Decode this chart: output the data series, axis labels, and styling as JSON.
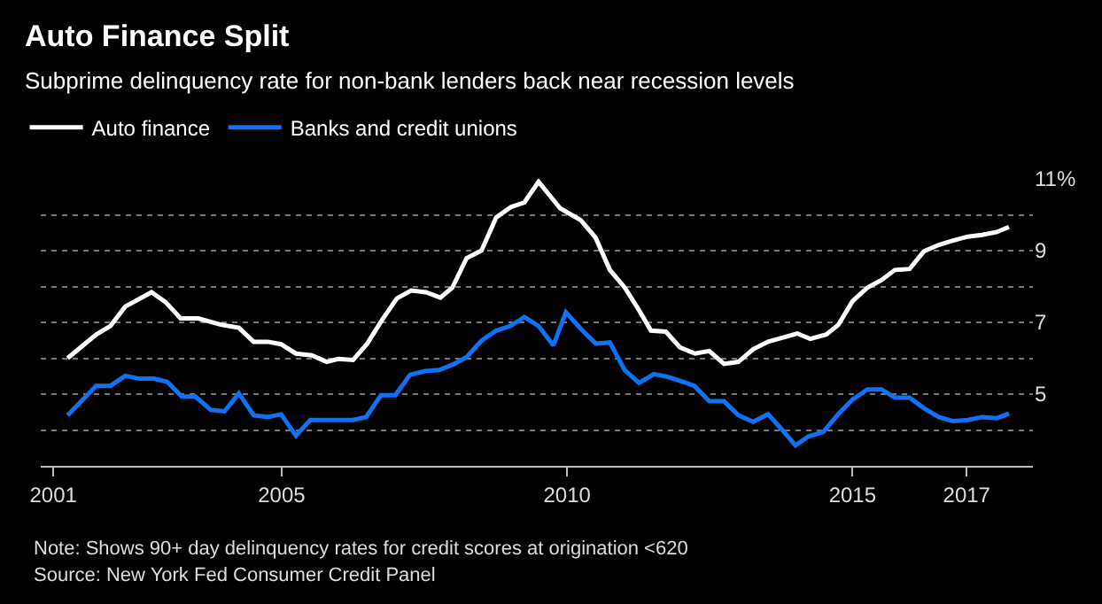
{
  "chart_data": {
    "type": "line",
    "title": "Auto Finance Split",
    "subtitle": "Subprime delinquency rate for non-bank lenders back near recession levels",
    "annotations": [
      "Note: Shows 90+ day delinquency rates for credit scores at origination <620",
      "Source: New York Fed Consumer Credit Panel"
    ],
    "series": [
      {
        "name": "Auto finance",
        "color": "#ffffff",
        "x": [
          2001.25,
          2001.75,
          2002.0,
          2002.26,
          2002.72,
          2002.97,
          2003.23,
          2003.54,
          2003.95,
          2004.25,
          2004.51,
          2004.76,
          2004.99,
          2005.25,
          2005.53,
          2005.79,
          2005.99,
          2006.25,
          2006.5,
          2006.76,
          2007.02,
          2007.27,
          2007.53,
          2007.78,
          2007.99,
          2008.24,
          2008.5,
          2008.76,
          2009.01,
          2009.25,
          2009.5,
          2009.88,
          2010.24,
          2010.5,
          2010.75,
          2011.01,
          2011.26,
          2011.47,
          2011.73,
          2011.98,
          2012.24,
          2012.49,
          2012.75,
          2013.0,
          2013.26,
          2013.52,
          2013.77,
          2014.03,
          2014.26,
          2014.54,
          2014.75,
          2015.0,
          2015.26,
          2015.51,
          2015.74,
          2016.0,
          2016.25,
          2016.51,
          2016.76,
          2017.02,
          2017.27,
          2017.53,
          2017.74
        ],
        "values": [
          6.0,
          6.66,
          6.9,
          7.44,
          7.84,
          7.56,
          7.11,
          7.11,
          6.93,
          6.85,
          6.46,
          6.46,
          6.39,
          6.13,
          6.08,
          5.9,
          5.98,
          5.95,
          6.41,
          7.07,
          7.67,
          7.89,
          7.84,
          7.69,
          7.97,
          8.79,
          9.0,
          9.93,
          10.21,
          10.34,
          10.92,
          10.18,
          9.85,
          9.36,
          8.46,
          7.97,
          7.34,
          6.77,
          6.74,
          6.3,
          6.13,
          6.2,
          5.84,
          5.9,
          6.25,
          6.46,
          6.57,
          6.69,
          6.54,
          6.66,
          6.93,
          7.59,
          7.97,
          8.18,
          8.46,
          8.49,
          8.98,
          9.16,
          9.28,
          9.39,
          9.44,
          9.52,
          9.66
        ]
      },
      {
        "name": "Banks and credit unions",
        "color": "#0f72f5",
        "x": [
          2001.25,
          2001.75,
          2002.0,
          2002.26,
          2002.51,
          2002.77,
          2003.0,
          2003.25,
          2003.49,
          2003.76,
          2004.0,
          2004.25,
          2004.51,
          2004.76,
          2004.99,
          2005.25,
          2005.5,
          2005.79,
          2006.25,
          2006.48,
          2006.74,
          2006.99,
          2007.25,
          2007.51,
          2007.76,
          2008.02,
          2008.24,
          2008.5,
          2008.76,
          2009.01,
          2009.25,
          2009.5,
          2009.76,
          2009.98,
          2010.24,
          2010.5,
          2010.75,
          2011.01,
          2011.26,
          2011.52,
          2011.77,
          2012.03,
          2012.23,
          2012.49,
          2012.75,
          2013.0,
          2013.26,
          2013.52,
          2013.77,
          2014.0,
          2014.23,
          2014.49,
          2014.75,
          2015.0,
          2015.26,
          2015.51,
          2015.74,
          2016.0,
          2016.25,
          2016.51,
          2016.76,
          2017.02,
          2017.27,
          2017.53,
          2017.74
        ],
        "values": [
          4.41,
          5.23,
          5.23,
          5.51,
          5.43,
          5.43,
          5.34,
          4.93,
          4.93,
          4.56,
          4.52,
          5.02,
          4.41,
          4.36,
          4.44,
          3.84,
          4.28,
          4.28,
          4.28,
          4.36,
          4.97,
          4.97,
          5.54,
          5.64,
          5.67,
          5.84,
          6.03,
          6.49,
          6.77,
          6.9,
          7.15,
          6.9,
          6.36,
          7.28,
          6.82,
          6.41,
          6.44,
          5.67,
          5.31,
          5.56,
          5.48,
          5.34,
          5.23,
          4.8,
          4.8,
          4.41,
          4.23,
          4.44,
          4.0,
          3.57,
          3.82,
          3.95,
          4.44,
          4.85,
          5.13,
          5.13,
          4.9,
          4.9,
          4.61,
          4.36,
          4.25,
          4.28,
          4.36,
          4.33,
          4.46
        ]
      }
    ],
    "xlim": [
      2000.78,
      2018.16
    ],
    "xticks": [
      2001,
      2005,
      2010,
      2015,
      2017
    ],
    "ylim": [
      3,
      11
    ],
    "yticks": [
      {
        "value": 4,
        "label": null
      },
      5,
      {
        "value": 6,
        "label": null
      },
      7,
      {
        "value": 8,
        "label": null
      },
      9,
      {
        "value": 10,
        "label": null
      },
      {
        "value": 11,
        "label": "11%"
      }
    ],
    "grid": "y",
    "legend": "top left",
    "line_style": "solid",
    "marker": "none"
  }
}
